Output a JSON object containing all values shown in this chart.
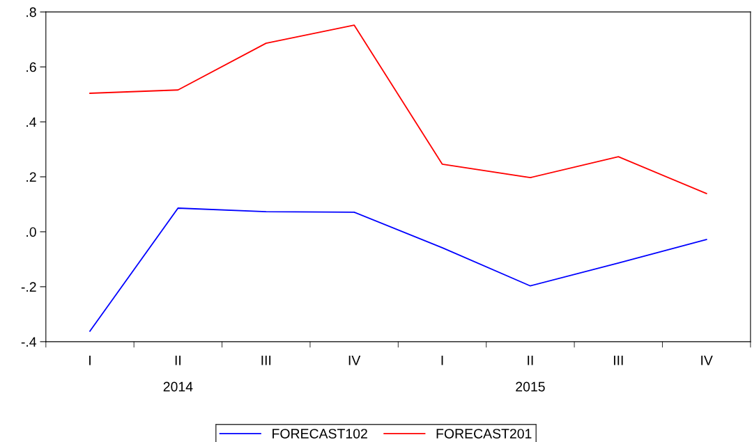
{
  "chart_data": {
    "type": "line",
    "categories": [
      "I",
      "II",
      "III",
      "IV",
      "I",
      "II",
      "III",
      "IV"
    ],
    "series": [
      {
        "name": "FORECAST102",
        "color": "#0000ff",
        "values": [
          -0.362,
          0.086,
          0.073,
          0.071,
          -0.058,
          -0.197,
          -0.114,
          -0.028
        ]
      },
      {
        "name": "FORECAST201",
        "color": "#ff0000",
        "values": [
          0.504,
          0.516,
          0.686,
          0.752,
          0.246,
          0.197,
          0.273,
          0.139
        ]
      }
    ],
    "ylim": [
      -0.4,
      0.8
    ],
    "yticks": [
      {
        "value": -0.4,
        "label": "-.4"
      },
      {
        "value": -0.2,
        "label": "-.2"
      },
      {
        "value": 0.0,
        "label": ".0"
      },
      {
        "value": 0.2,
        "label": ".2"
      },
      {
        "value": 0.4,
        "label": ".4"
      },
      {
        "value": 0.6,
        "label": ".6"
      },
      {
        "value": 0.8,
        "label": ".8"
      }
    ],
    "annotations": [
      "2014",
      "2015"
    ],
    "grid": false,
    "legend": "bottom",
    "marker": "none",
    "line_style": "solid"
  }
}
